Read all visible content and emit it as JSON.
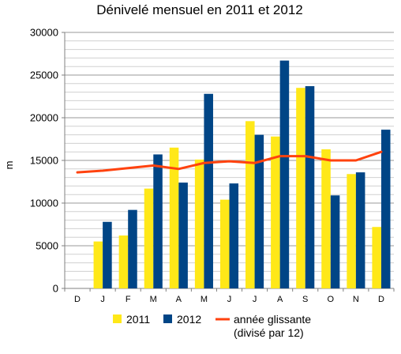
{
  "chart_data": {
    "type": "bar",
    "title": "Dénivelé mensuel en 2011 et 2012",
    "xlabel": "",
    "ylabel": "m",
    "ylim": [
      0,
      30000
    ],
    "yticks": [
      0,
      5000,
      10000,
      15000,
      20000,
      25000,
      30000
    ],
    "grid": true,
    "legend_position": "bottom",
    "categories": [
      "D",
      "J",
      "F",
      "M",
      "A",
      "M",
      "J",
      "J",
      "A",
      "S",
      "O",
      "N",
      "D"
    ],
    "series": [
      {
        "name": "2011",
        "type": "bar",
        "color": "#FFE818",
        "values": [
          0,
          5500,
          6200,
          11700,
          16500,
          15100,
          10400,
          19600,
          17800,
          23500,
          16300,
          13400,
          7200
        ]
      },
      {
        "name": "2012",
        "type": "bar",
        "color": "#004586",
        "values": [
          0,
          7800,
          9200,
          15700,
          12400,
          22800,
          12300,
          18000,
          26700,
          23700,
          10900,
          13600,
          18600
        ]
      },
      {
        "name": "année glissante",
        "name_line2": "(divisé par 12)",
        "type": "line",
        "color": "#FF420E",
        "values": [
          13600,
          13800,
          14100,
          14400,
          14000,
          14700,
          14900,
          14700,
          15500,
          15500,
          15000,
          15000,
          16000
        ]
      }
    ]
  }
}
